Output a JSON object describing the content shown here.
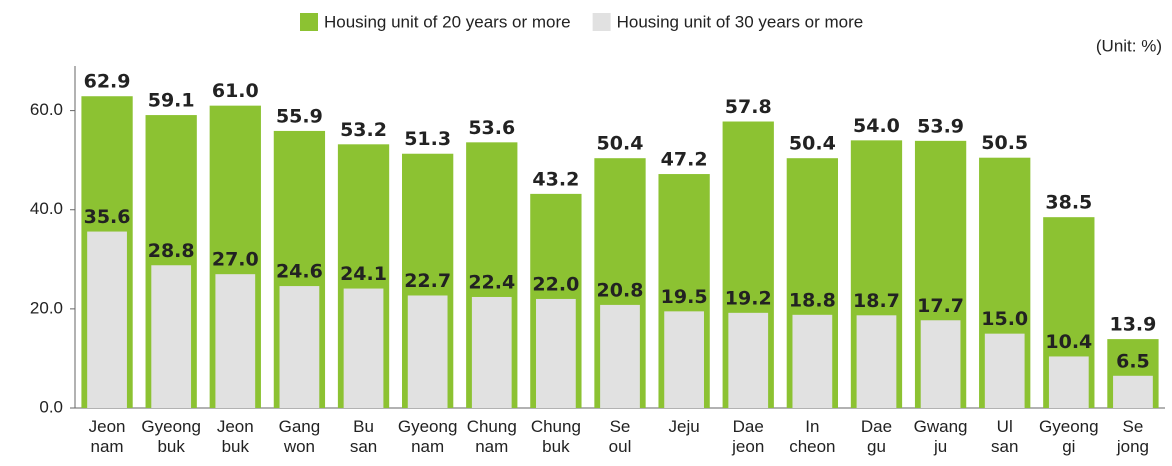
{
  "chart_data": {
    "type": "bar",
    "unit_label": "(Unit: %)",
    "categories": [
      "Jeon nam",
      "Gyeong buk",
      "Jeon buk",
      "Gang won",
      "Bu san",
      "Gyeong nam",
      "Chung nam",
      "Chung buk",
      "Se oul",
      "Jeju",
      "Dae jeon",
      "In cheon",
      "Dae gu",
      "Gwang ju",
      "Ul san",
      "Gyeong gi",
      "Se jong"
    ],
    "series": [
      {
        "name": "Housing unit of 20 years or more",
        "color": "#8cc232",
        "values": [
          62.9,
          59.1,
          61.0,
          55.9,
          53.2,
          51.3,
          53.6,
          43.2,
          50.4,
          47.2,
          57.8,
          50.4,
          54.0,
          53.9,
          50.5,
          38.5,
          13.9
        ],
        "value_labels": [
          "62.9",
          "59.1",
          "61.0",
          "55.9",
          "53.2",
          "51.3",
          "53.6",
          "43.2",
          "50.4",
          "47.2",
          "57.8",
          "50.4",
          "54.0",
          "53.9",
          "50.5",
          "38.5",
          "13.9"
        ]
      },
      {
        "name": "Housing unit of 30 years or more",
        "color": "#e1e1e1",
        "values": [
          35.6,
          28.8,
          27.0,
          24.6,
          24.1,
          22.7,
          22.4,
          22.0,
          20.8,
          19.5,
          19.2,
          18.8,
          18.7,
          17.7,
          15.0,
          10.4,
          6.5
        ],
        "value_labels": [
          "35.6",
          "28.8",
          "27.0",
          "24.6",
          "24.1",
          "22.7",
          "22.4",
          "22.0",
          "20.8",
          "19.5",
          "19.2",
          "18.8",
          "18.7",
          "17.7",
          "15.0",
          "10.4",
          "6.5"
        ]
      }
    ],
    "ylim": [
      0,
      69
    ],
    "yticks": [
      {
        "value": 0,
        "label": "0.0"
      },
      {
        "value": 20,
        "label": "20.0"
      },
      {
        "value": 40,
        "label": "40.0"
      },
      {
        "value": 60,
        "label": "60.0"
      }
    ]
  }
}
